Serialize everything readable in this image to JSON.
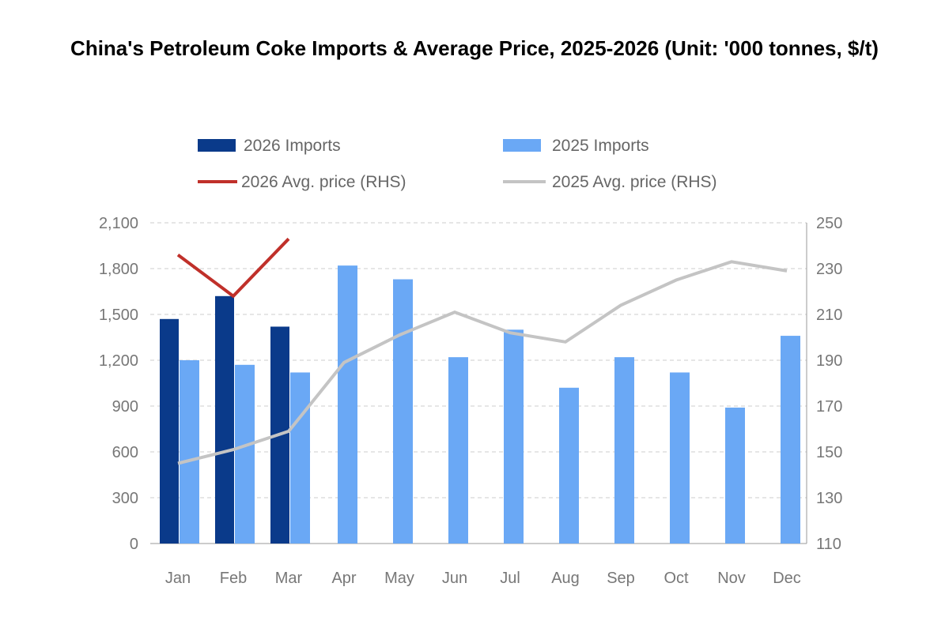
{
  "chart_data": {
    "type": "bar+line",
    "title": "China's Petroleum Coke Imports & Average Price, 2025-2026 (Unit: '000 tonnes, $/t)",
    "categories": [
      "Jan",
      "Feb",
      "Mar",
      "Apr",
      "May",
      "Jun",
      "Jul",
      "Aug",
      "Sep",
      "Oct",
      "Nov",
      "Dec"
    ],
    "series": [
      {
        "name": "2026 Imports",
        "type": "bar",
        "axis": "left",
        "color": "#0a3a8a",
        "values": [
          1470,
          1620,
          1420,
          null,
          null,
          null,
          null,
          null,
          null,
          null,
          null,
          null
        ]
      },
      {
        "name": "2025 Imports",
        "type": "bar",
        "axis": "left",
        "color": "#6aa8f5",
        "values": [
          1200,
          1170,
          1120,
          1820,
          1730,
          1220,
          1400,
          1020,
          1220,
          1120,
          890,
          1360
        ]
      },
      {
        "name": "2026 Avg. price (RHS)",
        "type": "line",
        "axis": "right",
        "color": "#c0302a",
        "values": [
          236,
          218,
          243,
          null,
          null,
          null,
          null,
          null,
          null,
          null,
          null,
          null
        ]
      },
      {
        "name": "2025 Avg. price (RHS)",
        "type": "line",
        "axis": "right",
        "color": "#c4c4c4",
        "values": [
          145,
          151,
          159,
          189,
          201,
          211,
          202,
          198,
          214,
          225,
          233,
          229
        ]
      }
    ],
    "ylim_left": [
      0,
      2100
    ],
    "yticks_left": [
      "0",
      "300",
      "600",
      "900",
      "1,200",
      "1,500",
      "1,800",
      "2,100"
    ],
    "ylim_right": [
      110,
      250
    ],
    "yticks_right": [
      "110",
      "130",
      "150",
      "170",
      "190",
      "210",
      "230",
      "250"
    ],
    "grid": true,
    "legend": "top"
  }
}
